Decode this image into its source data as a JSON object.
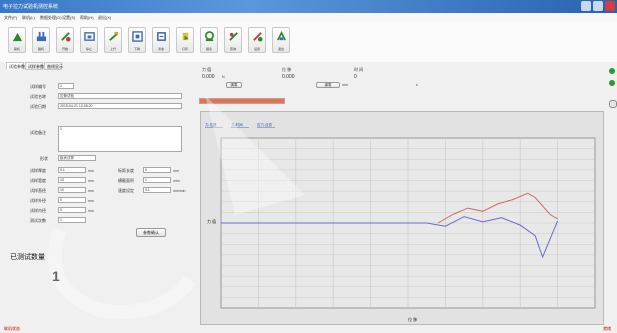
{
  "window": {
    "title": "电子拉力试验机测控系统"
  },
  "menu": [
    {
      "label": "文件(F)"
    },
    {
      "label": "联机(L)"
    },
    {
      "label": "数据处理(D)"
    },
    {
      "label": "设置(S)"
    },
    {
      "label": "帮助(H)"
    },
    {
      "label": "退出(X)"
    }
  ],
  "toolbar": [
    {
      "label": "联机",
      "icon": "connect-icon",
      "color": "#2a8a2a"
    },
    {
      "label": "脱机",
      "icon": "disconnect-icon",
      "color": "#3a6ab8"
    },
    {
      "label": "开始",
      "icon": "start-icon",
      "color": "#2a8a2a"
    },
    {
      "label": "停止",
      "icon": "stop-icon",
      "color": "#3a6ab8"
    },
    {
      "label": "上升",
      "icon": "up-icon",
      "color": "#2a8a2a"
    },
    {
      "label": "下降",
      "icon": "down-icon",
      "color": "#3a6ab8"
    },
    {
      "label": "清零",
      "icon": "zero-icon",
      "color": "#2a5aa8"
    },
    {
      "label": "打印",
      "icon": "print-icon",
      "color": "#2a8a2a"
    },
    {
      "label": "报表",
      "icon": "report-icon",
      "color": "#2a8a2a"
    },
    {
      "label": "查询",
      "icon": "query-icon",
      "color": "#2a8a2a"
    },
    {
      "label": "设置",
      "icon": "settings-icon",
      "color": "#c83a3a"
    },
    {
      "label": "退出",
      "icon": "exit-icon",
      "color": "#2a8a2a"
    }
  ],
  "tabs": [
    {
      "label": "试验参数",
      "active": true
    },
    {
      "label": "试样参数",
      "active": false
    },
    {
      "label": "曲线显示",
      "active": false
    }
  ],
  "form": {
    "sample_no_label": "试样编号",
    "sample_no": "1",
    "test_name_label": "试验名称",
    "test_name": "拉伸试验",
    "test_date_label": "试验日期",
    "test_date": "2015-04-21 10:35:20",
    "remark_label": "试验备注",
    "remark": "1",
    "shape_label": "形状",
    "shape": "板状试样",
    "rows": [
      {
        "label": "试样厚度",
        "value": "0.1",
        "unit": "mm",
        "label2": "标距长度",
        "value2": "0",
        "unit2": "mm"
      },
      {
        "label": "试样宽度",
        "value": "10",
        "unit": "mm",
        "label2": "横截面积",
        "value2": "1",
        "unit2": "mm²"
      },
      {
        "label": "试样直径",
        "value": "10",
        "unit": "mm",
        "label2": "速度设定",
        "value2": "0.1",
        "unit2": "mm/min"
      },
      {
        "label": "试样外径",
        "value": "0",
        "unit": "mm"
      },
      {
        "label": "试样内径",
        "value": "0",
        "unit": "mm"
      },
      {
        "label": "测试次数",
        "value": "1",
        "unit": ""
      }
    ],
    "apply_button": "参数确认"
  },
  "counter": {
    "label": "已测试数量",
    "value": "1"
  },
  "readouts": {
    "force_label": "力 值",
    "force_value": "0.000",
    "force_unit": "N",
    "force_button": "清零",
    "disp_label": "位 移",
    "disp_value": "0.000",
    "disp_unit": "mm",
    "disp_button": "清零",
    "time_label": "时 间",
    "time_value": "0",
    "time_unit": "s"
  },
  "progress": {
    "fraction": 1.0,
    "color": "#e8704a"
  },
  "chart_data": {
    "type": "line",
    "legend": [
      "力-位移",
      "力-时间",
      "应力-应变"
    ],
    "xlabel": "位 移",
    "ylabel": "力 值",
    "grid": true,
    "series": [
      {
        "color": "#6a6ad0",
        "points": [
          [
            0,
            0
          ],
          [
            55,
            0
          ],
          [
            60,
            -0.3
          ],
          [
            65,
            0.6
          ],
          [
            70,
            0.1
          ],
          [
            75,
            0.5
          ],
          [
            80,
            -0.2
          ],
          [
            84,
            -1.2
          ],
          [
            86,
            -3.2
          ],
          [
            88,
            -1.5
          ],
          [
            90,
            0.2
          ]
        ]
      },
      {
        "color": "#d06a6a",
        "points": [
          [
            58,
            0
          ],
          [
            62,
            0.8
          ],
          [
            66,
            1.4
          ],
          [
            70,
            1.1
          ],
          [
            74,
            1.8
          ],
          [
            78,
            2.2
          ],
          [
            82,
            2.8
          ],
          [
            84,
            2.4
          ],
          [
            88,
            0.8
          ],
          [
            90,
            0.4
          ]
        ]
      }
    ]
  },
  "status": {
    "left": "联机状态",
    "right": "就绪"
  },
  "colors": {
    "accent": "#3a78c8",
    "chart_bg": "#e2e2e2"
  }
}
